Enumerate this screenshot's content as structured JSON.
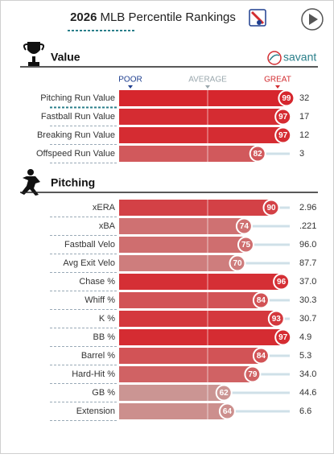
{
  "header": {
    "year": "2026",
    "title": "MLB Percentile Rankings"
  },
  "scale": {
    "poor": "POOR",
    "average": "AVERAGE",
    "great": "GREAT"
  },
  "sections": [
    {
      "title": "Value",
      "brand": "savant",
      "rows": [
        {
          "label": "Pitching Run Value",
          "percentile": 99,
          "stat": "32"
        },
        {
          "label": "Fastball Run Value",
          "percentile": 97,
          "stat": "17"
        },
        {
          "label": "Breaking Run Value",
          "percentile": 97,
          "stat": "12"
        },
        {
          "label": "Offspeed Run Value",
          "percentile": 82,
          "stat": "3"
        }
      ]
    },
    {
      "title": "Pitching",
      "rows": [
        {
          "label": "xERA",
          "percentile": 90,
          "stat": "2.96"
        },
        {
          "label": "xBA",
          "percentile": 74,
          "stat": ".221"
        },
        {
          "label": "Fastball Velo",
          "percentile": 75,
          "stat": "96.0"
        },
        {
          "label": "Avg Exit Velo",
          "percentile": 70,
          "stat": "87.7"
        },
        {
          "label": "Chase %",
          "percentile": 96,
          "stat": "37.0"
        },
        {
          "label": "Whiff %",
          "percentile": 84,
          "stat": "30.3"
        },
        {
          "label": "K %",
          "percentile": 93,
          "stat": "30.7"
        },
        {
          "label": "BB %",
          "percentile": 97,
          "stat": "4.9"
        },
        {
          "label": "Barrel %",
          "percentile": 84,
          "stat": "5.3"
        },
        {
          "label": "Hard-Hit %",
          "percentile": 79,
          "stat": "34.0"
        },
        {
          "label": "GB %",
          "percentile": 62,
          "stat": "44.6"
        },
        {
          "label": "Extension",
          "percentile": 64,
          "stat": "6.6"
        }
      ]
    }
  ]
}
